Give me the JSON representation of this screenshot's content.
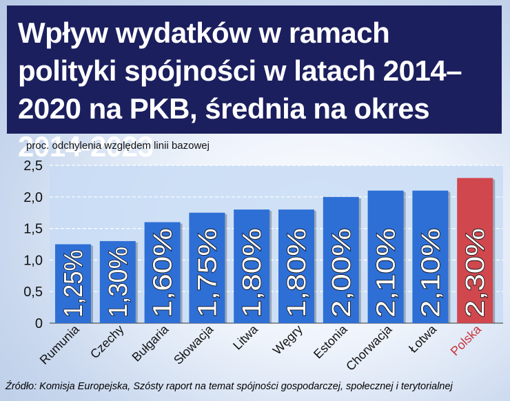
{
  "title": "Wpływ wydatków w ramach polityki spójności w latach 2014–2020 na PKB, średnia na okres 2014-2023",
  "subtitle": "proc. odchylenia względem linii bazowej",
  "source": "Źródło: Komisja Europejska, Szósty raport na temat spójności gospodarczej, społecznej i terytorialnej",
  "colors": {
    "title_bg": "#1b1f5e",
    "bar": "#2e6fd6",
    "bar_highlight": "#d0474e",
    "plot_bg": "#c8dcf4",
    "highlight_label": "#c9323a"
  },
  "chart_data": {
    "type": "bar",
    "categories": [
      "Rumunia",
      "Czechy",
      "Bułgaria",
      "Słowacja",
      "Litwa",
      "Węgry",
      "Estonia",
      "Chorwacja",
      "Łotwa",
      "Polska"
    ],
    "values": [
      1.25,
      1.3,
      1.6,
      1.75,
      1.8,
      1.8,
      2.0,
      2.1,
      2.1,
      2.3
    ],
    "value_labels": [
      "1,25%",
      "1,30%",
      "1,60%",
      "1,75%",
      "1,80%",
      "1,80%",
      "2,00%",
      "2,10%",
      "2,10%",
      "2,30%"
    ],
    "highlight": "Polska",
    "ylabel": "proc. odchylenia względem linii bazowej",
    "ylim": [
      0,
      2.5
    ],
    "yticks": [
      0,
      0.5,
      1.0,
      1.5,
      2.0,
      2.5
    ],
    "ytick_labels": [
      "0",
      "0,5",
      "1,0",
      "1,5",
      "2,0",
      "2,5"
    ],
    "grid": true
  }
}
